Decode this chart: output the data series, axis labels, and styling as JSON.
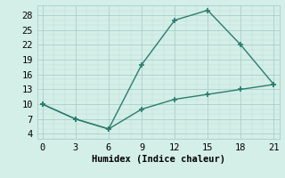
{
  "line1_x": [
    0,
    3,
    6,
    9,
    12,
    15,
    18,
    21
  ],
  "line1_y": [
    10,
    7,
    5,
    18,
    27,
    29,
    22,
    14
  ],
  "line2_x": [
    0,
    3,
    6,
    9,
    12,
    15,
    18,
    21
  ],
  "line2_y": [
    10,
    7,
    5,
    9,
    11,
    12,
    13,
    14
  ],
  "color": "#2a7d6e",
  "bg_color": "#d4eee8",
  "grid_major_color": "#aacfc8",
  "grid_minor_color": "#bcdbd4",
  "xlabel": "Humidex (Indice chaleur)",
  "xlim": [
    -0.5,
    21.5
  ],
  "ylim": [
    3,
    30
  ],
  "xticks": [
    0,
    3,
    6,
    9,
    12,
    15,
    18,
    21
  ],
  "yticks": [
    4,
    7,
    10,
    13,
    16,
    19,
    22,
    25,
    28
  ],
  "marker": "+",
  "marker_size": 5,
  "linewidth": 1.0,
  "font_size": 7.5
}
